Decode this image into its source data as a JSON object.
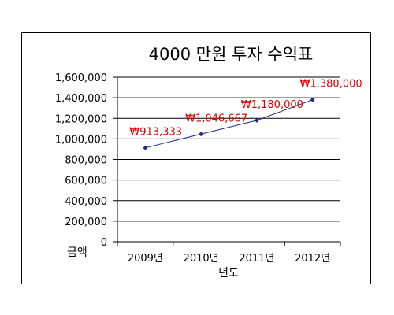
{
  "chart_data": {
    "type": "line",
    "title": "4000 만원 투자 수익표",
    "xlabel": "년도",
    "ylabel": "금액",
    "categories": [
      "2009년",
      "2010년",
      "2011년",
      "2012년"
    ],
    "series": [
      {
        "values": [
          913333,
          1046667,
          1180000,
          1380000
        ]
      }
    ],
    "data_labels": [
      "₩913,333",
      "₩1,046,667",
      "₩1,180,000",
      "₩1,380,000"
    ],
    "y_ticks": [
      "1,600,000",
      "1,400,000",
      "1,200,000",
      "1,000,000",
      "800,000",
      "600,000",
      "400,000",
      "200,000",
      "0"
    ],
    "ylim": [
      0,
      1600000
    ],
    "grid": true,
    "legend": "none",
    "colors": {
      "line": "#1f2d86",
      "marker": "#1f2d86",
      "data_label": "#e00000",
      "grid": "#000000"
    }
  }
}
